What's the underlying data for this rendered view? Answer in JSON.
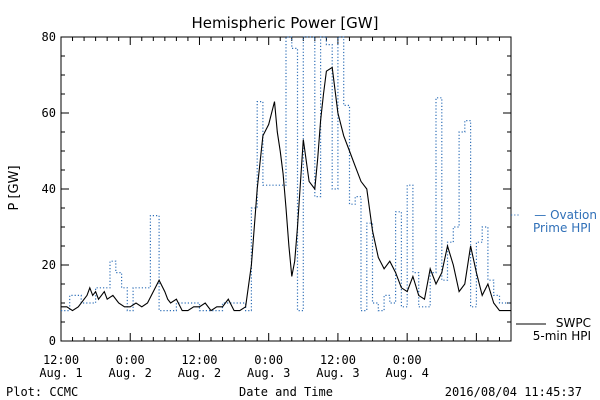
{
  "chart_data": {
    "type": "line",
    "title": "Hemispheric Power [GW]",
    "ylabel": "P [GW]",
    "xlabel": "Date and Time",
    "ylim": [
      0,
      80
    ],
    "xlim_hours": [
      0,
      78
    ],
    "x_unit": "hours from 2016-08-01 12:00",
    "yticks": [
      "0",
      "20",
      "40",
      "60",
      "80"
    ],
    "xticks": [
      {
        "hour": 0,
        "time": "12:00",
        "date": "Aug. 1"
      },
      {
        "hour": 12,
        "time": "0:00",
        "date": "Aug. 2"
      },
      {
        "hour": 24,
        "time": "12:00",
        "date": "Aug. 2"
      },
      {
        "hour": 36,
        "time": "0:00",
        "date": "Aug. 3"
      },
      {
        "hour": 48,
        "time": "12:00",
        "date": "Aug. 3"
      },
      {
        "hour": 60,
        "time": "0:00",
        "date": "Aug. 4"
      }
    ],
    "series": [
      {
        "name": "Ovation Prime HPI",
        "legend": [
          "— Ovation",
          "Prime HPI"
        ],
        "style": "dotted-step",
        "color": "#3070b8",
        "x": [
          0,
          1.5,
          3.5,
          6,
          8.5,
          9.5,
          10.5,
          11.5,
          12.5,
          15.5,
          17,
          18.5,
          20,
          24,
          26,
          28,
          30,
          32,
          33,
          34,
          35,
          36,
          38,
          39,
          40,
          41,
          42,
          43,
          44,
          45,
          46,
          47,
          48,
          49,
          50,
          51,
          52,
          53,
          54,
          55,
          56,
          57,
          58,
          59,
          60,
          61,
          62,
          63,
          64,
          65,
          66,
          67,
          68,
          69,
          70,
          71,
          72,
          73,
          74,
          75,
          76,
          77,
          78
        ],
        "y": [
          8,
          12,
          10,
          14,
          21,
          18,
          14,
          8,
          14,
          33,
          8,
          8,
          10,
          8,
          8,
          10,
          10,
          8,
          35,
          63,
          41,
          41,
          41,
          80,
          77,
          8,
          80,
          80,
          38,
          80,
          78,
          40,
          80,
          62,
          36,
          38,
          8,
          31,
          10,
          8,
          12,
          10,
          34,
          9,
          41,
          18,
          9,
          9,
          18,
          64,
          16,
          26,
          30,
          55,
          58,
          9,
          26,
          30,
          16,
          12,
          10,
          10,
          10
        ]
      },
      {
        "name": "SWPC 5-min HPI",
        "legend": [
          "SWPC",
          "5-min HPI"
        ],
        "style": "solid",
        "color": "#000000",
        "x": [
          0,
          1,
          2,
          3,
          4,
          4.5,
          5,
          5.5,
          6,
          6.5,
          7,
          7.5,
          8,
          9,
          10,
          11,
          12,
          13,
          14,
          15,
          16,
          17,
          18,
          18.5,
          19,
          20,
          21,
          22,
          23,
          24,
          25,
          26,
          27,
          28,
          29,
          30,
          31,
          32,
          33,
          34,
          35,
          36,
          36.5,
          37,
          37.5,
          38,
          38.5,
          39,
          39.5,
          40,
          40.5,
          41,
          42,
          43,
          44,
          44.5,
          45,
          45.5,
          46,
          47,
          48,
          49,
          50,
          51,
          52,
          53,
          54,
          55,
          56,
          57,
          58,
          59,
          60,
          61,
          62,
          63,
          64,
          65,
          66,
          67,
          68,
          69,
          70,
          71,
          72,
          73,
          74,
          75,
          76,
          77,
          78
        ],
        "y": [
          9,
          9,
          8,
          9,
          11,
          12,
          14,
          12,
          13,
          11,
          12,
          13,
          11,
          12,
          10,
          9,
          9,
          10,
          9,
          10,
          13,
          16,
          13,
          11,
          10,
          11,
          8,
          8,
          9,
          9,
          10,
          8,
          9,
          9,
          11,
          8,
          8,
          9,
          20,
          40,
          54,
          57,
          60,
          63,
          55,
          50,
          44,
          35,
          25,
          17,
          21,
          30,
          53,
          42,
          40,
          48,
          58,
          65,
          71,
          72,
          60,
          54,
          50,
          46,
          42,
          40,
          29,
          22,
          19,
          21,
          18,
          14,
          13,
          17,
          12,
          11,
          19,
          15,
          18,
          25,
          20,
          13,
          15,
          25,
          18,
          12,
          15,
          10,
          8,
          8,
          8
        ]
      }
    ],
    "footer": {
      "left": "Plot: CCMC",
      "right": "2016/08/04 11:45:37"
    }
  }
}
